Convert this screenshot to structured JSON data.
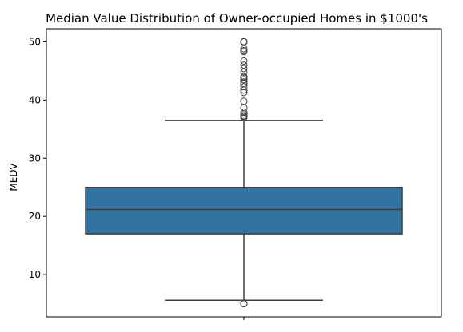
{
  "chart_data": {
    "type": "box",
    "title": "Median Value Distribution of Owner-occupied Homes in $1000's",
    "xlabel": "",
    "ylabel": "MEDV",
    "ylim": [
      2.75,
      52.25
    ],
    "yticks": [
      10,
      20,
      30,
      40,
      50
    ],
    "grid": false,
    "colors": {
      "box": "#3274a1",
      "line": "#3d3d3d",
      "axis": "#000000"
    },
    "box": {
      "q1": 17.0,
      "median": 21.2,
      "q3": 25.0,
      "whisker_low": 5.6,
      "whisker_high": 36.5,
      "outliers": [
        5.0,
        5.0,
        37.0,
        37.2,
        37.3,
        37.6,
        37.9,
        38.7,
        39.8,
        41.3,
        41.7,
        42.3,
        42.8,
        43.1,
        43.5,
        43.8,
        44.0,
        44.8,
        45.4,
        46.0,
        46.7,
        48.3,
        48.5,
        48.8,
        50.0,
        50.0,
        50.0,
        50.0,
        50.0,
        50.0
      ]
    }
  }
}
